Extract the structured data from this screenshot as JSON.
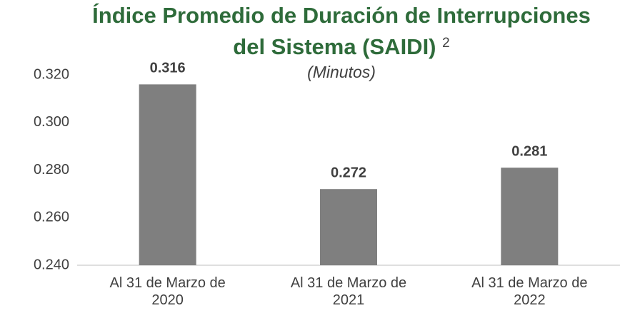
{
  "chart_data": {
    "type": "bar",
    "title": "Índice Promedio de Duración de Interrupciones del Sistema (SAIDI)",
    "title_note": "2",
    "subtitle": "(Minutos)",
    "categories": [
      "Al 31 de Marzo de 2020",
      "Al 31 de Marzo de 2021",
      "Al 31 de Marzo de 2022"
    ],
    "values": [
      0.316,
      0.272,
      0.281
    ],
    "color": "#7f7f7f",
    "ylim": [
      0.24,
      0.32
    ],
    "yticks": [
      {
        "value": 0.24,
        "label": "0.240"
      },
      {
        "value": 0.26,
        "label": "0.260"
      },
      {
        "value": 0.28,
        "label": "0.280"
      },
      {
        "value": 0.3,
        "label": "0.300"
      },
      {
        "value": 0.32,
        "label": "0.320"
      }
    ],
    "grid": false
  }
}
